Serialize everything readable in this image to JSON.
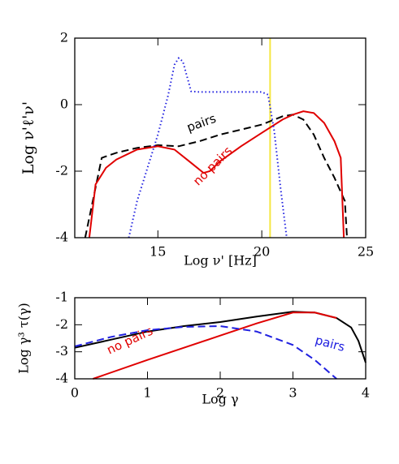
{
  "chart_data": [
    {
      "type": "line",
      "xlabel": "Log ν'  [Hz]",
      "ylabel": "Log ν'ℓ'ν'",
      "xlim": [
        11,
        25
      ],
      "xticks": [
        15,
        20,
        25
      ],
      "ylim": [
        -4,
        2
      ],
      "yticks": [
        -4,
        -2,
        0,
        2
      ],
      "vline": {
        "x": 20.4,
        "color": "#f5e642"
      },
      "series": [
        {
          "name": "pairs",
          "color": "#000000",
          "style": "dashed",
          "x": [
            11.5,
            12.3,
            13,
            14,
            15,
            16,
            17,
            18,
            19,
            20,
            21,
            21.5,
            22,
            22.5,
            23,
            23.5,
            24,
            24.1
          ],
          "values": [
            -4,
            -1.6,
            -1.45,
            -1.3,
            -1.22,
            -1.25,
            -1.1,
            -0.9,
            -0.75,
            -0.6,
            -0.35,
            -0.3,
            -0.45,
            -0.9,
            -1.6,
            -2.2,
            -2.9,
            -4
          ]
        },
        {
          "name": "no pairs",
          "color": "#e00000",
          "style": "solid",
          "x": [
            11.7,
            12,
            12.5,
            13,
            14,
            15,
            15.8,
            16.5,
            17.2,
            17.5,
            18,
            19,
            20,
            21,
            21.5,
            22,
            22.5,
            23,
            23.5,
            23.8,
            23.95
          ],
          "values": [
            -4,
            -2.4,
            -1.9,
            -1.65,
            -1.35,
            -1.25,
            -1.35,
            -1.7,
            -2.05,
            -2.0,
            -1.7,
            -1.25,
            -0.85,
            -0.45,
            -0.3,
            -0.2,
            -0.25,
            -0.55,
            -1.1,
            -1.6,
            -4
          ]
        },
        {
          "color": "#2020e0",
          "style": "dotted",
          "x": [
            13.6,
            14,
            14.5,
            15,
            15.5,
            15.8,
            16,
            16.2,
            16.6,
            17,
            20,
            20.3,
            20.6,
            20.9,
            21.2
          ],
          "values": [
            -4,
            -2.9,
            -1.9,
            -0.9,
            0.3,
            1.2,
            1.4,
            1.3,
            0.4,
            0.38,
            0.38,
            0.3,
            -0.8,
            -2.5,
            -4
          ]
        }
      ]
    },
    {
      "type": "line",
      "xlabel": "Log γ",
      "ylabel": "Log γ³ τ(γ)",
      "xlim": [
        0,
        4
      ],
      "xticks": [
        0,
        1,
        2,
        3,
        4
      ],
      "ylim": [
        -4,
        -1
      ],
      "yticks": [
        -4,
        -3,
        -2,
        -1
      ],
      "series": [
        {
          "color": "#000000",
          "style": "solid",
          "x": [
            0,
            0.5,
            1,
            1.5,
            2,
            2.5,
            3,
            3.3,
            3.6,
            3.8,
            3.9,
            4
          ],
          "values": [
            -2.85,
            -2.55,
            -2.25,
            -2.05,
            -1.9,
            -1.7,
            -1.52,
            -1.55,
            -1.75,
            -2.1,
            -2.6,
            -3.4
          ]
        },
        {
          "name": "no pairs",
          "color": "#e00000",
          "style": "solid",
          "x": [
            0.25,
            1,
            2,
            2.5,
            3,
            3.3,
            3.6
          ],
          "values": [
            -4,
            -3.3,
            -2.4,
            -1.95,
            -1.55,
            -1.55,
            -1.75
          ]
        },
        {
          "name": "pairs",
          "color": "#2020e0",
          "style": "dashed",
          "x": [
            0,
            0.5,
            1,
            1.5,
            2,
            2.5,
            3,
            3.3,
            3.6
          ],
          "values": [
            -2.8,
            -2.45,
            -2.2,
            -2.08,
            -2.05,
            -2.25,
            -2.75,
            -3.3,
            -4
          ]
        }
      ]
    }
  ]
}
